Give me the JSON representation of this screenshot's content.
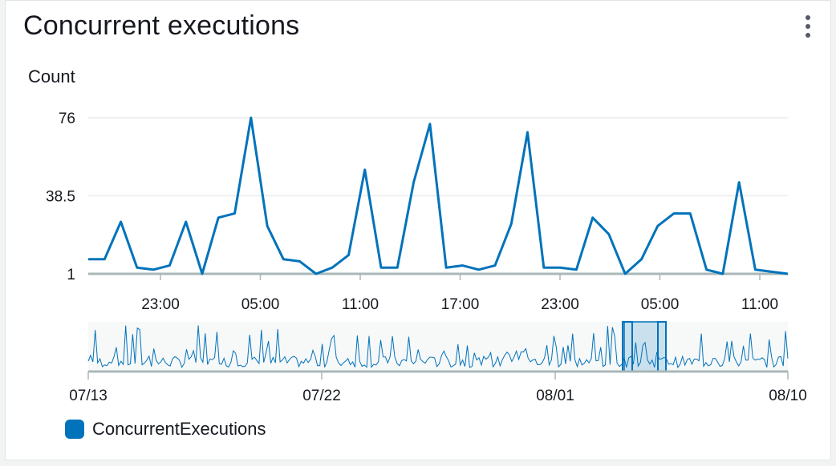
{
  "widget": {
    "title": "Concurrent executions",
    "ylabel": "Count",
    "menu_icon": "vertical-ellipsis-icon"
  },
  "colors": {
    "series": "#0073bb",
    "grid": "#e9ebed",
    "axis": "#aab7b8",
    "navigator_bg": "#f7f8f8",
    "selection": "#0073bb"
  },
  "chart_data": {
    "type": "line",
    "ylabel": "Count",
    "ylim": [
      1,
      76
    ],
    "yticks": [
      "76",
      "38.5",
      "1"
    ],
    "ytick_values": [
      76,
      38.5,
      1
    ],
    "xtick_labels": [
      "23:00",
      "05:00",
      "11:00",
      "17:00",
      "23:00",
      "05:00",
      "11:00"
    ],
    "grid": true,
    "legend_position": "bottom-left",
    "series": [
      {
        "name": "ConcurrentExecutions",
        "values": [
          8,
          8,
          26,
          4,
          3,
          5,
          26,
          1,
          28,
          30,
          76,
          24,
          8,
          7,
          1,
          4,
          10,
          51,
          4,
          4,
          45,
          73,
          4,
          5,
          3,
          5,
          25,
          69,
          4,
          4,
          3,
          28,
          20,
          1,
          8,
          24,
          30,
          30,
          3,
          1,
          45,
          3,
          2,
          1
        ]
      }
    ]
  },
  "navigator": {
    "date_labels": [
      "07/13",
      "07/22",
      "08/01",
      "08/10"
    ]
  },
  "legend": {
    "items": [
      {
        "label": "ConcurrentExecutions"
      }
    ]
  }
}
